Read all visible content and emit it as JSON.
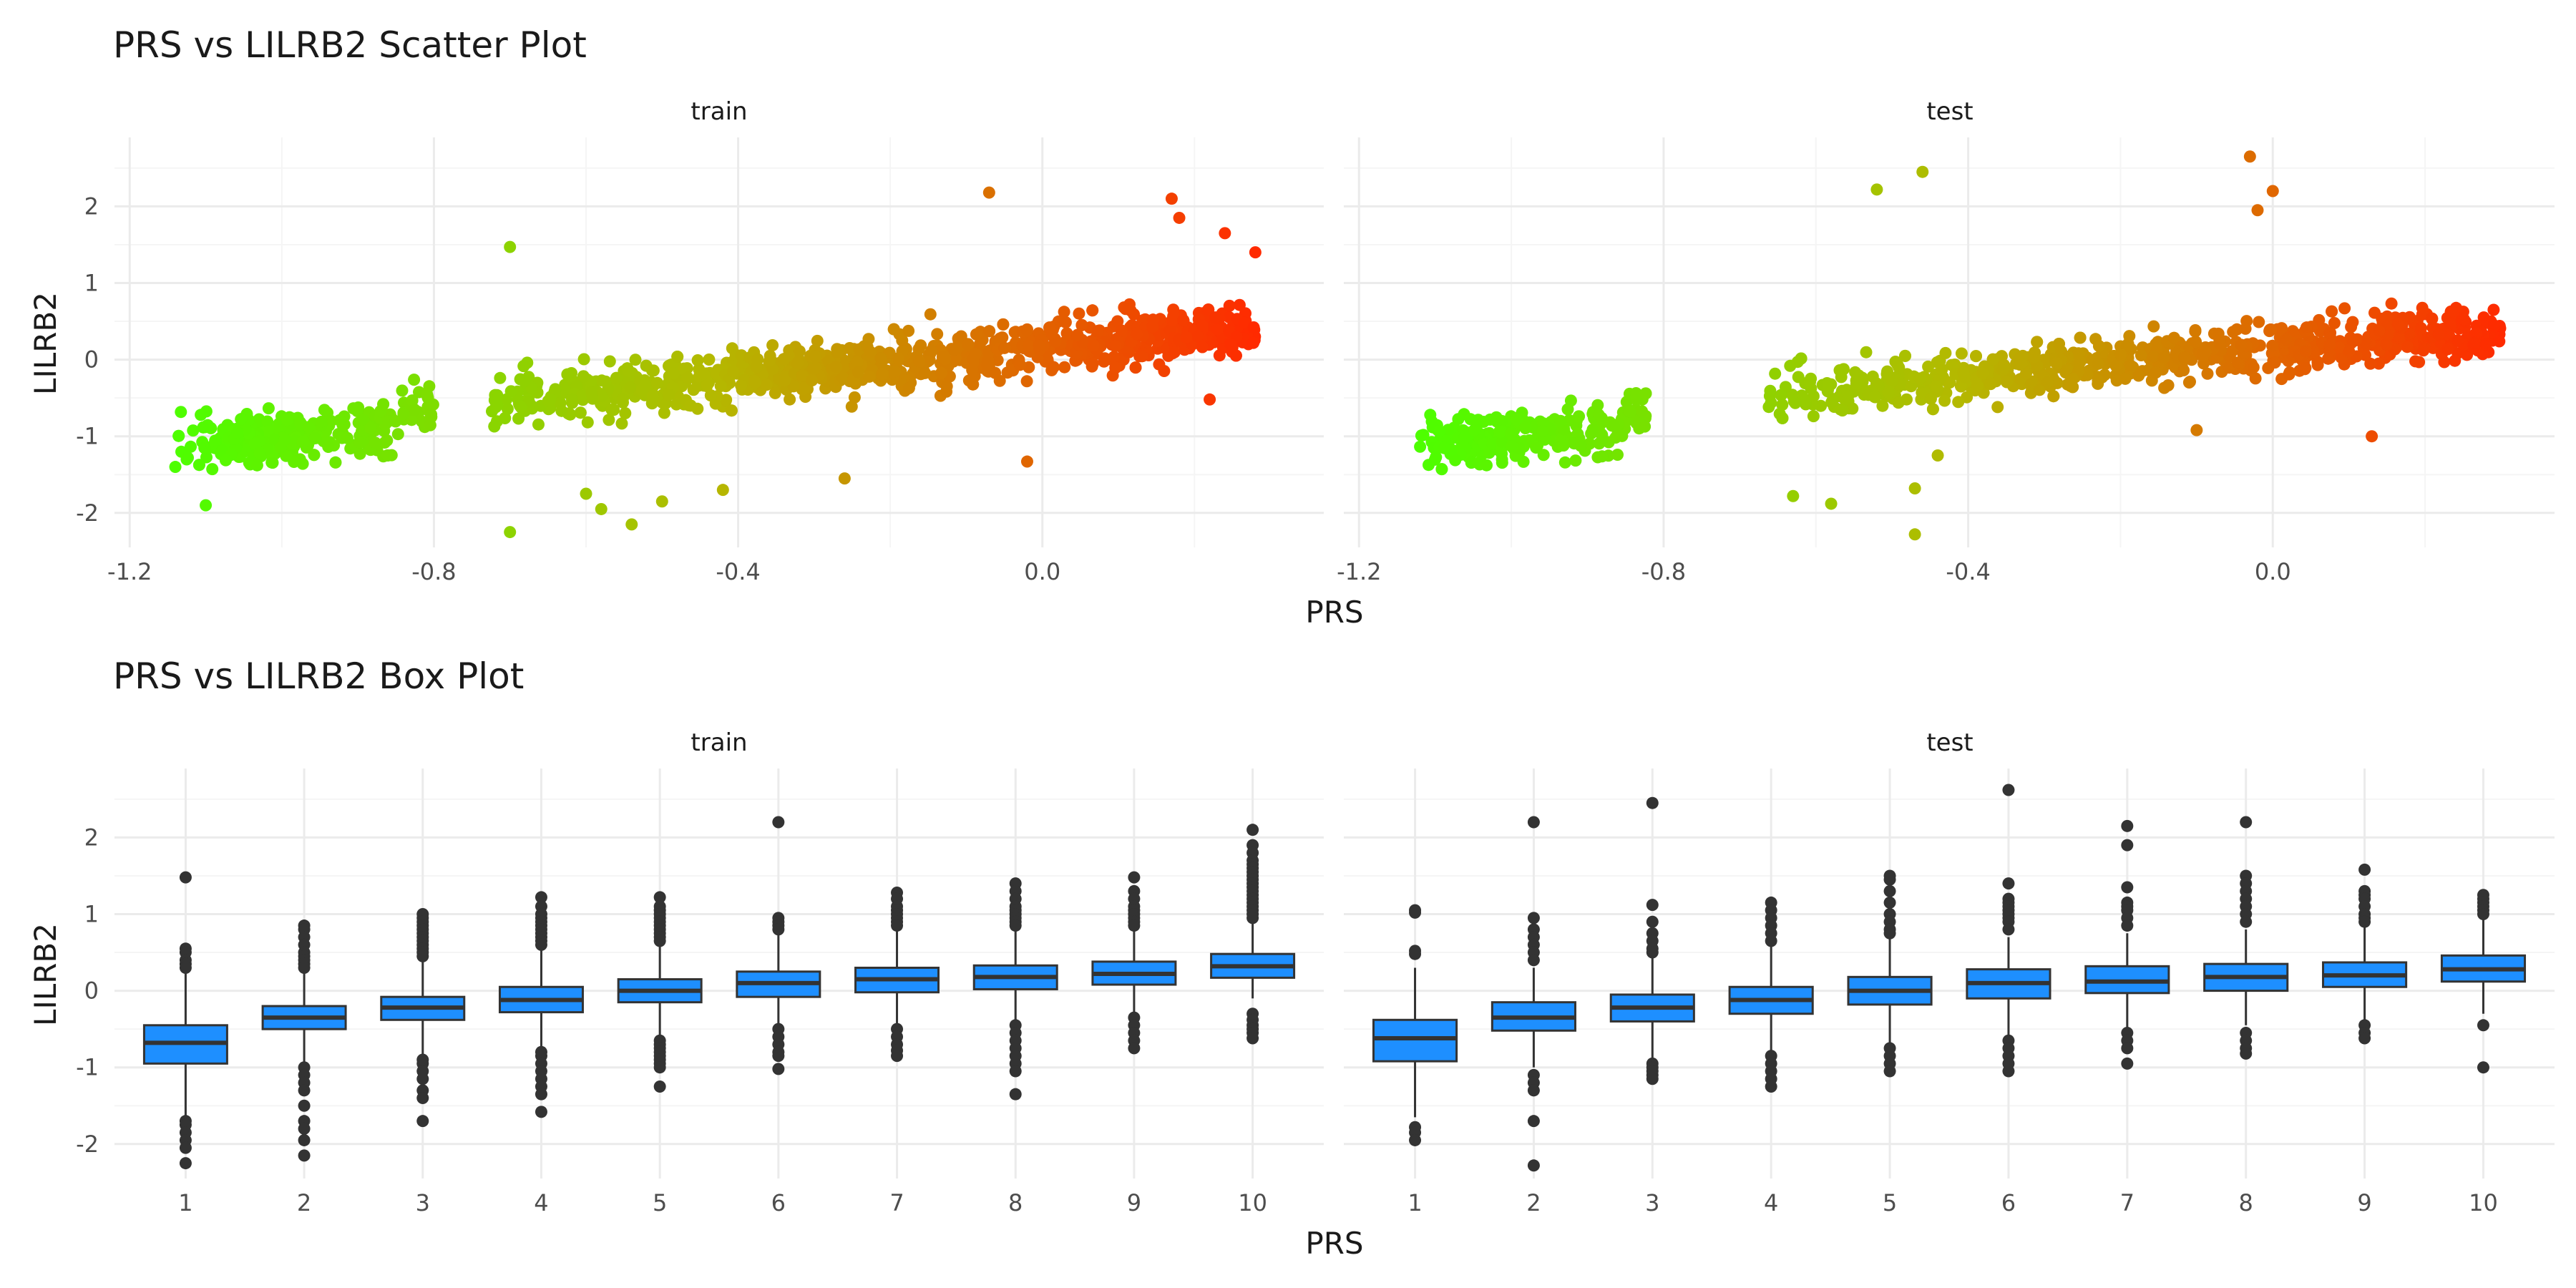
{
  "colors": {
    "grid_major": "#ebebeb",
    "grid_minor": "#f5f5f5",
    "low_color": "#4cff00",
    "mid_color": "#b4b900",
    "high_color": "#ff2a00",
    "box_fill": "#1e8fff",
    "box_outline": "#333333",
    "text_dark": "#1a1a1a",
    "text_mid": "#4d4d4d"
  },
  "chart_data": [
    {
      "type": "scatter",
      "title": "PRS vs LILRB2 Scatter Plot",
      "xlabel": "PRS",
      "ylabel": "LILRB2",
      "color_by": "PRS (green low → red high)",
      "panels": [
        {
          "label": "train",
          "xlim": [
            -1.22,
            0.37
          ],
          "ylim": [
            -2.45,
            2.9
          ],
          "x_ticks": [
            -1.2,
            -0.8,
            -0.4,
            0.0
          ],
          "x_tick_labels": [
            "-1.2",
            "-0.8",
            "-0.4",
            "0.0"
          ],
          "y_ticks": [
            -2,
            -1,
            0,
            1,
            2
          ],
          "y_tick_labels": [
            "-2",
            "-1",
            "0",
            "1",
            "2"
          ],
          "trend": {
            "slope": 1.0,
            "intercept": 0.15
          },
          "x_range": [
            -1.15,
            0.28
          ],
          "gap": [
            -0.8,
            -0.73
          ],
          "n_points": 1500,
          "outliers": [
            {
              "x": -0.07,
              "y": 2.18
            },
            {
              "x": 0.17,
              "y": 2.1
            },
            {
              "x": 0.18,
              "y": 1.85
            },
            {
              "x": 0.28,
              "y": 1.4
            },
            {
              "x": 0.24,
              "y": 1.65
            },
            {
              "x": -0.7,
              "y": 1.47
            },
            {
              "x": -0.7,
              "y": -2.25
            },
            {
              "x": -0.58,
              "y": -1.95
            },
            {
              "x": -0.54,
              "y": -2.15
            },
            {
              "x": -0.6,
              "y": -1.75
            },
            {
              "x": -0.5,
              "y": -1.85
            },
            {
              "x": -0.42,
              "y": -1.7
            },
            {
              "x": -0.26,
              "y": -1.55
            },
            {
              "x": -0.02,
              "y": -1.33
            },
            {
              "x": 0.22,
              "y": -0.52
            },
            {
              "x": -1.14,
              "y": -1.4
            },
            {
              "x": -1.1,
              "y": -1.9
            }
          ]
        },
        {
          "label": "test",
          "xlim": [
            -1.22,
            0.37
          ],
          "ylim": [
            -2.45,
            2.9
          ],
          "x_ticks": [
            -1.2,
            -0.8,
            -0.4,
            0.0
          ],
          "x_tick_labels": [
            "-1.2",
            "-0.8",
            "-0.4",
            "0.0"
          ],
          "y_ticks": [
            -2,
            -1,
            0,
            1,
            2
          ],
          "y_tick_labels": [
            "-2",
            "-1",
            "0",
            "1",
            "2"
          ],
          "trend": {
            "slope": 1.0,
            "intercept": 0.15
          },
          "x_range": [
            -1.13,
            0.3
          ],
          "gap": [
            -0.82,
            -0.67
          ],
          "n_points": 1100,
          "outliers": [
            {
              "x": -0.03,
              "y": 2.65
            },
            {
              "x": -0.46,
              "y": 2.45
            },
            {
              "x": -0.52,
              "y": 2.22
            },
            {
              "x": 0.0,
              "y": 2.2
            },
            {
              "x": -0.02,
              "y": 1.95
            },
            {
              "x": -0.47,
              "y": -2.28
            },
            {
              "x": -0.47,
              "y": -1.68
            },
            {
              "x": -0.63,
              "y": -1.78
            },
            {
              "x": -0.58,
              "y": -1.88
            },
            {
              "x": -0.44,
              "y": -1.25
            },
            {
              "x": 0.13,
              "y": -1.0
            },
            {
              "x": -0.1,
              "y": -0.92
            },
            {
              "x": 0.29,
              "y": 0.65
            },
            {
              "x": 0.28,
              "y": 0.2
            }
          ]
        }
      ]
    },
    {
      "type": "box",
      "title": "PRS vs LILRB2 Box Plot",
      "xlabel": "PRS",
      "ylabel": "LILRB2",
      "categories": [
        "1",
        "2",
        "3",
        "4",
        "5",
        "6",
        "7",
        "8",
        "9",
        "10"
      ],
      "panels": [
        {
          "label": "train",
          "ylim": [
            -2.45,
            2.9
          ],
          "y_ticks": [
            -2,
            -1,
            0,
            1,
            2
          ],
          "y_tick_labels": [
            "-2",
            "-1",
            "0",
            "1",
            "2"
          ],
          "boxes": [
            {
              "q1": -0.95,
              "median": -0.68,
              "q3": -0.45,
              "lo": -1.65,
              "hi": 0.25,
              "out": [
                1.48,
                0.55,
                0.5,
                0.4,
                0.35,
                0.3,
                -1.7,
                -1.75,
                -1.85,
                -1.95,
                -2.05,
                -2.25
              ]
            },
            {
              "q1": -0.5,
              "median": -0.35,
              "q3": -0.2,
              "lo": -0.95,
              "hi": 0.25,
              "out": [
                0.85,
                0.8,
                0.7,
                0.6,
                0.5,
                0.45,
                0.4,
                0.35,
                0.3,
                -1.0,
                -1.1,
                -1.2,
                -1.3,
                -1.5,
                -1.7,
                -1.8,
                -1.95,
                -2.15
              ]
            },
            {
              "q1": -0.38,
              "median": -0.22,
              "q3": -0.08,
              "lo": -0.85,
              "hi": 0.4,
              "out": [
                1.0,
                0.95,
                0.9,
                0.85,
                0.8,
                0.75,
                0.7,
                0.65,
                0.6,
                0.55,
                0.5,
                0.45,
                -0.9,
                -0.95,
                -1.05,
                -1.15,
                -1.3,
                -1.4,
                -1.7
              ]
            },
            {
              "q1": -0.28,
              "median": -0.12,
              "q3": 0.05,
              "lo": -0.75,
              "hi": 0.55,
              "out": [
                1.22,
                1.1,
                1.0,
                0.95,
                0.9,
                0.85,
                0.8,
                0.75,
                0.7,
                0.65,
                0.6,
                -0.8,
                -0.85,
                -0.95,
                -1.05,
                -1.15,
                -1.25,
                -1.35,
                -1.58
              ]
            },
            {
              "q1": -0.15,
              "median": 0.0,
              "q3": 0.15,
              "lo": -0.6,
              "hi": 0.6,
              "out": [
                1.22,
                1.1,
                1.05,
                1.0,
                0.95,
                0.9,
                0.85,
                0.8,
                0.75,
                0.7,
                0.65,
                -0.65,
                -0.7,
                -0.75,
                -0.8,
                -0.85,
                -0.9,
                -0.95,
                -1.0,
                -1.25
              ]
            },
            {
              "q1": -0.08,
              "median": 0.1,
              "q3": 0.25,
              "lo": -0.45,
              "hi": 0.75,
              "out": [
                2.2,
                0.95,
                0.9,
                0.85,
                0.8,
                -0.5,
                -0.6,
                -0.7,
                -0.8,
                -0.85,
                -1.02
              ]
            },
            {
              "q1": -0.02,
              "median": 0.15,
              "q3": 0.3,
              "lo": -0.45,
              "hi": 0.8,
              "out": [
                1.28,
                1.2,
                1.1,
                1.05,
                1.0,
                0.95,
                0.9,
                0.85,
                -0.5,
                -0.6,
                -0.7,
                -0.78,
                -0.85
              ]
            },
            {
              "q1": 0.02,
              "median": 0.18,
              "q3": 0.33,
              "lo": -0.4,
              "hi": 0.8,
              "out": [
                1.4,
                1.3,
                1.2,
                1.1,
                1.05,
                1.0,
                0.95,
                0.9,
                0.85,
                -0.45,
                -0.55,
                -0.65,
                -0.75,
                -0.85,
                -0.95,
                -1.05,
                -1.35
              ]
            },
            {
              "q1": 0.08,
              "median": 0.22,
              "q3": 0.38,
              "lo": -0.3,
              "hi": 0.8,
              "out": [
                1.48,
                1.3,
                1.2,
                1.1,
                1.05,
                1.0,
                0.95,
                0.9,
                0.85,
                -0.35,
                -0.45,
                -0.55,
                -0.65,
                -0.75
              ]
            },
            {
              "q1": 0.17,
              "median": 0.32,
              "q3": 0.48,
              "lo": -0.1,
              "hi": 0.9,
              "out": [
                2.1,
                1.9,
                1.8,
                1.7,
                1.65,
                1.6,
                1.55,
                1.5,
                1.45,
                1.4,
                1.35,
                1.3,
                1.25,
                1.2,
                1.15,
                1.1,
                1.05,
                1.0,
                0.95,
                -0.3,
                -0.38,
                -0.45,
                -0.5,
                -0.55,
                -0.62
              ]
            }
          ]
        },
        {
          "label": "test",
          "ylim": [
            -2.45,
            2.9
          ],
          "y_ticks": [
            -2,
            -1,
            0,
            1,
            2
          ],
          "y_tick_labels": [
            "-2",
            "-1",
            "0",
            "1",
            "2"
          ],
          "boxes": [
            {
              "q1": -0.92,
              "median": -0.62,
              "q3": -0.38,
              "lo": -1.65,
              "hi": 0.3,
              "out": [
                1.05,
                1.02,
                0.52,
                0.48,
                -1.78,
                -1.85,
                -1.95
              ]
            },
            {
              "q1": -0.52,
              "median": -0.35,
              "q3": -0.15,
              "lo": -1.0,
              "hi": 0.3,
              "out": [
                2.2,
                0.95,
                0.8,
                0.7,
                0.6,
                0.5,
                0.4,
                -1.1,
                -1.2,
                -1.3,
                -1.7,
                -2.28
              ]
            },
            {
              "q1": -0.4,
              "median": -0.22,
              "q3": -0.05,
              "lo": -0.9,
              "hi": 0.45,
              "out": [
                2.45,
                1.12,
                0.9,
                0.75,
                0.65,
                0.55,
                0.5,
                -0.95,
                -1.0,
                -1.05,
                -1.1,
                -1.15
              ]
            },
            {
              "q1": -0.3,
              "median": -0.12,
              "q3": 0.05,
              "lo": -0.8,
              "hi": 0.6,
              "out": [
                1.15,
                1.05,
                0.95,
                0.85,
                0.75,
                0.65,
                -0.85,
                -0.95,
                -1.05,
                -1.15,
                -1.25
              ]
            },
            {
              "q1": -0.18,
              "median": 0.0,
              "q3": 0.18,
              "lo": -0.7,
              "hi": 0.7,
              "out": [
                1.5,
                1.45,
                1.3,
                1.15,
                1.0,
                0.9,
                0.8,
                0.75,
                -0.75,
                -0.85,
                -0.95,
                -1.05
              ]
            },
            {
              "q1": -0.1,
              "median": 0.1,
              "q3": 0.28,
              "lo": -0.6,
              "hi": 0.7,
              "out": [
                2.62,
                1.4,
                1.2,
                1.15,
                1.1,
                1.05,
                1.0,
                0.95,
                0.9,
                0.8,
                -0.65,
                -0.75,
                -0.85,
                -0.95,
                -1.05
              ]
            },
            {
              "q1": -0.03,
              "median": 0.12,
              "q3": 0.32,
              "lo": -0.5,
              "hi": 0.75,
              "out": [
                2.15,
                1.9,
                1.35,
                1.15,
                1.1,
                1.05,
                0.95,
                0.85,
                -0.55,
                -0.65,
                -0.75,
                -0.95
              ]
            },
            {
              "q1": 0.0,
              "median": 0.18,
              "q3": 0.35,
              "lo": -0.45,
              "hi": 0.8,
              "out": [
                2.2,
                1.5,
                1.4,
                1.3,
                1.2,
                1.1,
                1.0,
                0.9,
                -0.55,
                -0.65,
                -0.75,
                -0.82
              ]
            },
            {
              "q1": 0.05,
              "median": 0.2,
              "q3": 0.37,
              "lo": -0.4,
              "hi": 0.85,
              "out": [
                1.58,
                1.3,
                1.25,
                1.2,
                1.1,
                1.0,
                0.95,
                0.9,
                -0.45,
                -0.55,
                -0.62
              ]
            },
            {
              "q1": 0.12,
              "median": 0.28,
              "q3": 0.46,
              "lo": -0.3,
              "hi": 0.95,
              "out": [
                1.25,
                1.2,
                1.15,
                1.1,
                1.05,
                1.0,
                -0.45,
                -1.0
              ]
            }
          ]
        }
      ]
    }
  ]
}
